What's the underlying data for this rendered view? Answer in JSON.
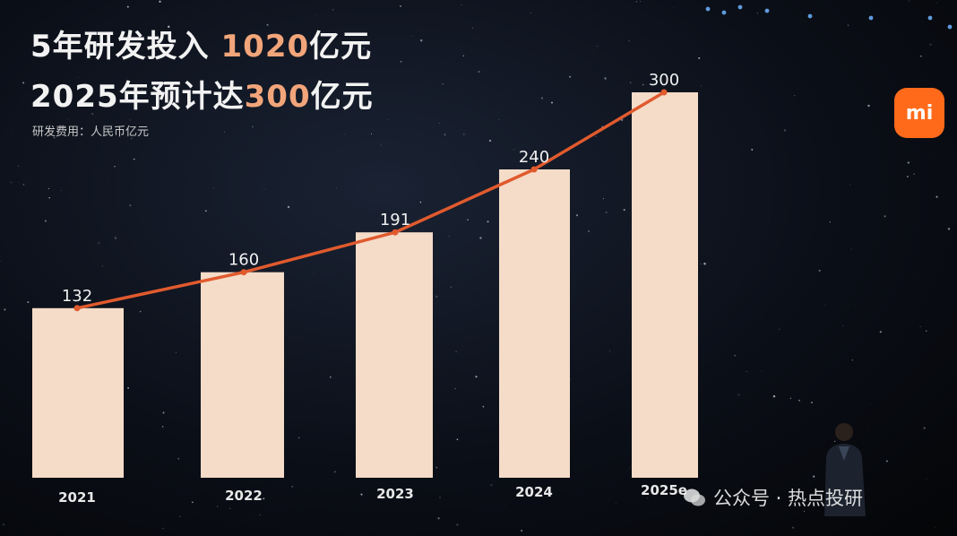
{
  "headline": {
    "line1_prefix": "5年研发投入 ",
    "line1_amount": "1020",
    "line1_suffix": "亿元",
    "line2_prefix": "2025年预计达",
    "line2_amount": "300",
    "line2_suffix": "亿元"
  },
  "subtitle": "研发费用：人民币亿元",
  "logo_text": "mi",
  "watermark": "公众号 · 热点投研",
  "colors": {
    "bar": "#f5dcc8",
    "line": "#e05a2e",
    "accent_text": "#f2a57a",
    "logo": "#ff6a1a"
  },
  "chart_data": {
    "type": "bar",
    "categories": [
      "2021",
      "2022",
      "2023",
      "2024",
      "2025e"
    ],
    "values": [
      132,
      160,
      191,
      240,
      300
    ],
    "data_labels": [
      "132",
      "160",
      "191",
      "240",
      "300"
    ],
    "overlay_line": true,
    "title": "",
    "xlabel": "",
    "ylabel": "",
    "ylim": [
      0,
      300
    ]
  }
}
